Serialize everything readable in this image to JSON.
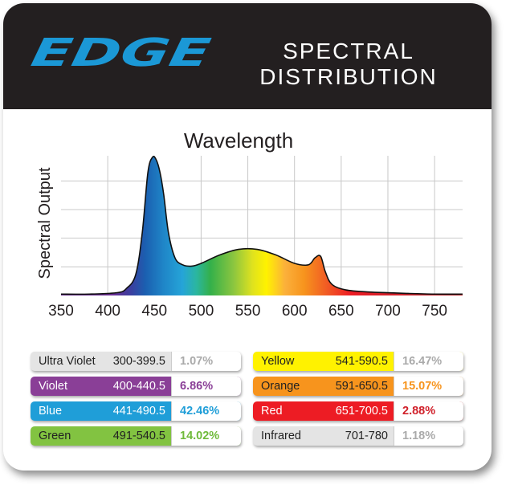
{
  "header": {
    "logo_text": "EDGE",
    "title_line1": "SPECTRAL",
    "title_line2": "DISTRIBUTION"
  },
  "chart_data": {
    "type": "area",
    "title": "Wavelength",
    "xlabel": "",
    "ylabel": "Spectral Output",
    "xlim": [
      350,
      780
    ],
    "ylim": [
      0,
      1
    ],
    "grid": true,
    "x_ticks": [
      350,
      400,
      450,
      500,
      550,
      600,
      650,
      700,
      750
    ],
    "x": [
      350,
      380,
      410,
      420,
      430,
      437,
      443,
      448,
      452,
      456,
      460,
      465,
      472,
      480,
      490,
      500,
      520,
      540,
      560,
      580,
      600,
      615,
      622,
      628,
      633,
      640,
      655,
      680,
      700,
      720,
      750,
      780
    ],
    "series": [
      {
        "name": "Spectral Output",
        "values": [
          0.01,
          0.01,
          0.02,
          0.05,
          0.15,
          0.45,
          0.88,
          0.99,
          0.97,
          0.88,
          0.72,
          0.45,
          0.27,
          0.22,
          0.21,
          0.23,
          0.29,
          0.33,
          0.33,
          0.29,
          0.23,
          0.22,
          0.27,
          0.28,
          0.17,
          0.08,
          0.04,
          0.025,
          0.02,
          0.015,
          0.01,
          0.01
        ]
      }
    ]
  },
  "legend": [
    {
      "name": "Ultra Violet",
      "range": "300-399.5",
      "percent": "1.07%",
      "bg": "#e4e4e4",
      "text": "#222222",
      "pct_color": "#aaaaaa"
    },
    {
      "name": "Violet",
      "range": "400-440.5",
      "percent": "6.86%",
      "bg": "#8a3f97",
      "text": "#ffffff",
      "pct_color": "#8a3f97"
    },
    {
      "name": "Blue",
      "range": "441-490.5",
      "percent": "42.46%",
      "bg": "#1f9ed8",
      "text": "#ffffff",
      "pct_color": "#1f9ed8"
    },
    {
      "name": "Green",
      "range": "491-540.5",
      "percent": "14.02%",
      "bg": "#82c341",
      "text": "#222222",
      "pct_color": "#6fba3a"
    },
    {
      "name": "Yellow",
      "range": "541-590.5",
      "percent": "16.47%",
      "bg": "#fff200",
      "text": "#222222",
      "pct_color": "#aaaaaa"
    },
    {
      "name": "Orange",
      "range": "591-650.5",
      "percent": "15.07%",
      "bg": "#f7941d",
      "text": "#222222",
      "pct_color": "#f7941d"
    },
    {
      "name": "Red",
      "range": "651-700.5",
      "percent": "2.88%",
      "bg": "#ed1c24",
      "text": "#ffffff",
      "pct_color": "#d0202a"
    },
    {
      "name": "Infrared",
      "range": "701-780",
      "percent": "1.18%",
      "bg": "#e4e4e4",
      "text": "#222222",
      "pct_color": "#aaaaaa"
    }
  ]
}
